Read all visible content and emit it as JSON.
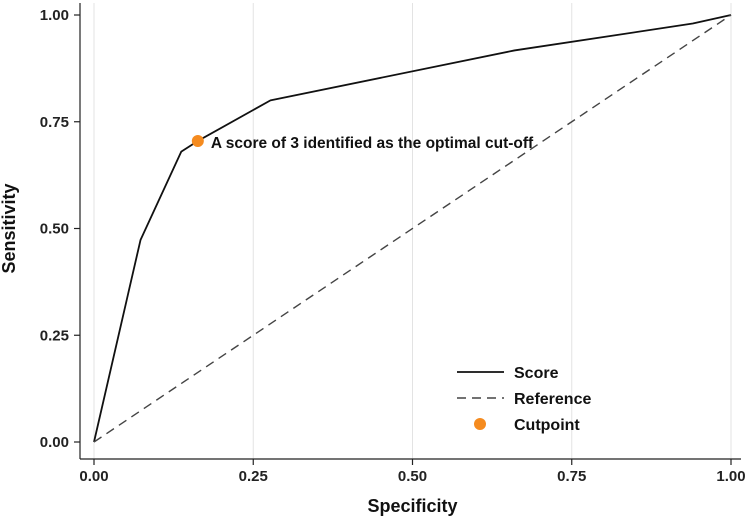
{
  "chart_data": {
    "type": "line",
    "xlabel": "Specificity",
    "ylabel": "Sensitivity",
    "xlim": [
      0,
      1
    ],
    "ylim": [
      0,
      1
    ],
    "xticks": [
      "0.00",
      "0.25",
      "0.50",
      "0.75",
      "1.00"
    ],
    "yticks": [
      "0.00",
      "0.25",
      "0.50",
      "0.75",
      "1.00"
    ],
    "grid": "vertical",
    "legend_position": "bottom-right",
    "series": [
      {
        "name": "Score",
        "style": "solid",
        "color": "#111111",
        "x": [
          0,
          0.073,
          0.137,
          0.163,
          0.277,
          0.66,
          0.94,
          1.0
        ],
        "y": [
          0,
          0.473,
          0.68,
          0.705,
          0.8,
          0.917,
          0.98,
          1.0
        ]
      },
      {
        "name": "Reference",
        "style": "dashed",
        "color": "#444444",
        "x": [
          0,
          1
        ],
        "y": [
          0,
          1
        ]
      },
      {
        "name": "Cutpoint",
        "style": "point",
        "color": "#f58b1f",
        "x": [
          0.163
        ],
        "y": [
          0.705
        ]
      }
    ],
    "annotations": [
      {
        "text": "A score of 3 identified as the optimal cut-off",
        "x": 0.163,
        "y": 0.705
      }
    ]
  }
}
